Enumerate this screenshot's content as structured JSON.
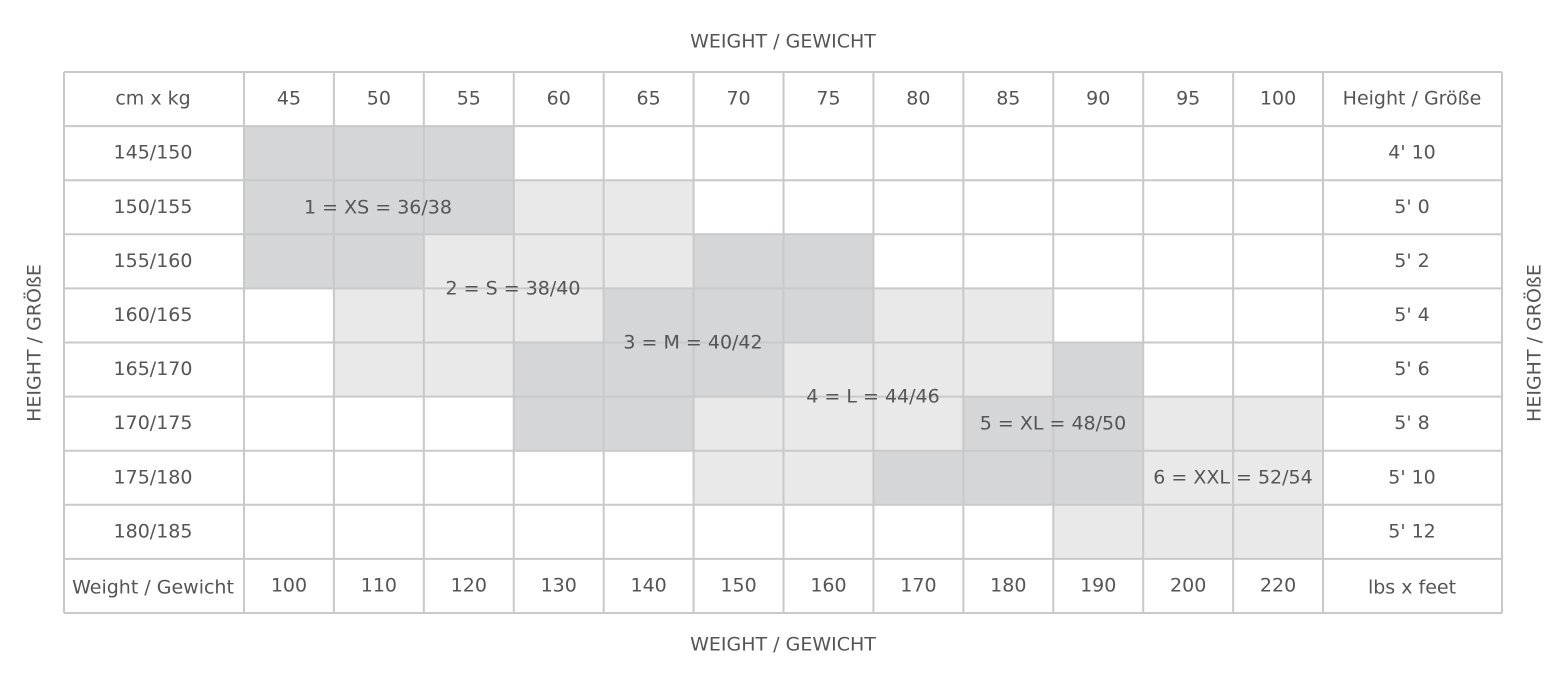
{
  "top_label": "WEIGHT / GEWICHT",
  "bottom_label": "WEIGHT / GEWICHT",
  "left_label": "HEIGHT / GRÖßE",
  "right_label": "HEIGHT / GRÖßE",
  "table": {
    "corner": "cm x kg",
    "kg": [
      45,
      50,
      55,
      60,
      65,
      70,
      75,
      80,
      85,
      90,
      95,
      100
    ],
    "height_header": "Height / Größe",
    "rows": [
      {
        "cm": "145/150",
        "feet": "4' 10"
      },
      {
        "cm": "150/155",
        "feet": "5' 0"
      },
      {
        "cm": "155/160",
        "feet": "5' 2"
      },
      {
        "cm": "160/165",
        "feet": "5' 4"
      },
      {
        "cm": "165/170",
        "feet": "5' 6"
      },
      {
        "cm": "170/175",
        "feet": "5' 8"
      },
      {
        "cm": "175/180",
        "feet": "5' 10"
      },
      {
        "cm": "180/185",
        "feet": "5' 12"
      }
    ],
    "footer_label": "Weight / Gewicht",
    "lbs": [
      100,
      110,
      120,
      130,
      140,
      150,
      160,
      170,
      180,
      190,
      200,
      220
    ],
    "footer_end": "lbs x feet"
  },
  "sizes": [
    "1 = XS = 36/38",
    "2 = S = 38/40",
    "3 = M = 40/42",
    "4 = L = 44/46",
    "5 = XL = 48/50",
    "6 = XXL = 52/54"
  ]
}
